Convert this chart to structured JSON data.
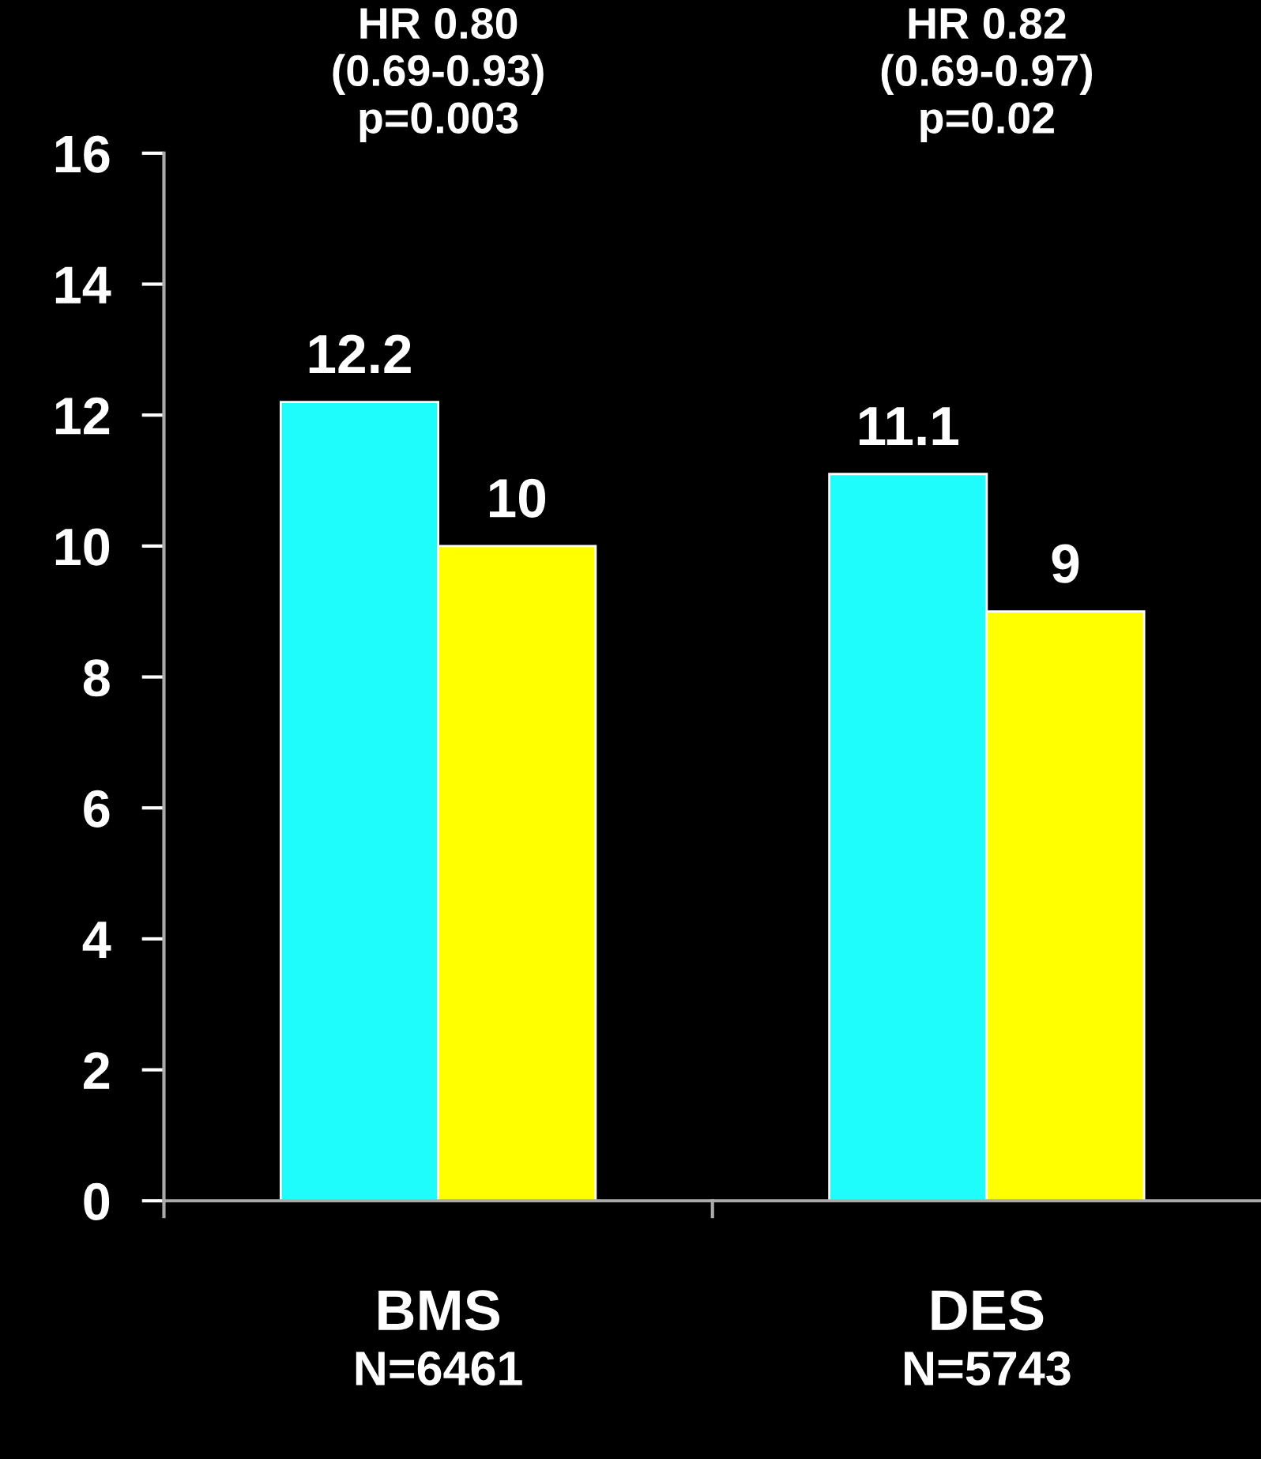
{
  "chart_data": {
    "type": "bar",
    "categories": [
      "BMS",
      "DES"
    ],
    "series": [
      {
        "color": "#1ffcfc",
        "values": [
          12.2,
          11.1
        ]
      },
      {
        "color": "#ffff00",
        "values": [
          10,
          9
        ]
      }
    ],
    "ylim": [
      0,
      16
    ],
    "yticks": [
      0,
      2,
      4,
      6,
      8,
      10,
      12,
      14,
      16
    ],
    "data_labels": true,
    "grid": false,
    "legend": false,
    "annotations": [
      "HR 0.80\n(0.69-0.93)\np=0.003",
      "HR 0.82\n(0.69-0.97)\np=0.02",
      "N=6461",
      "N=5743"
    ]
  }
}
